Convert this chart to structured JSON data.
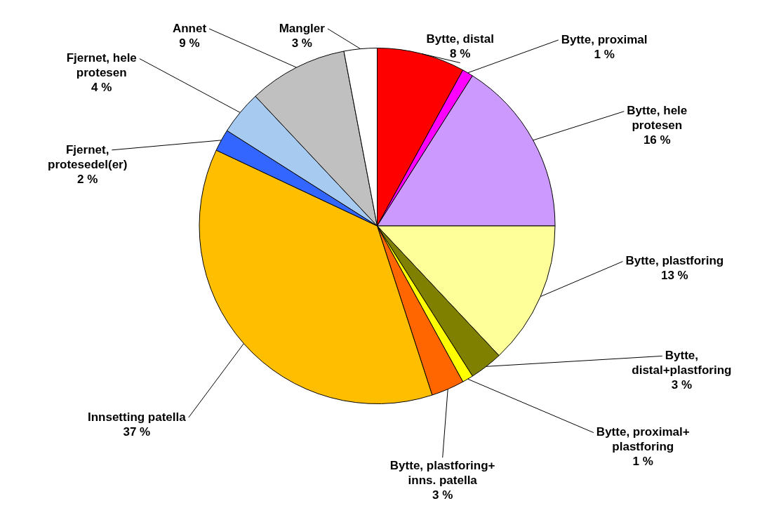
{
  "chart_data": {
    "type": "pie",
    "categories": [
      "Bytte, distal",
      "Bytte, proximal",
      "Bytte, hele protesen",
      "Bytte, plastforing",
      "Bytte, distal+plastforing",
      "Bytte, proximal+ plastforing",
      "Bytte, plastforing+ inns. patella",
      "Innsetting patella",
      "Fjernet, protesedel(er)",
      "Fjernet, hele protesen",
      "Annet",
      "Mangler"
    ],
    "values": [
      8,
      1,
      16,
      13,
      3,
      1,
      3,
      37,
      2,
      4,
      9,
      3
    ],
    "value_labels": [
      "8 %",
      "1 %",
      "16 %",
      "13 %",
      "3 %",
      "1 %",
      "3 %",
      "37 %",
      "2 %",
      "4 %",
      "9 %",
      "3 %"
    ],
    "colors": [
      "#ff0000",
      "#ff00ff",
      "#cc99ff",
      "#ffff99",
      "#808000",
      "#ffff00",
      "#ff6600",
      "#ffbf00",
      "#3366ff",
      "#a6caf0",
      "#c0c0c0",
      "#ffffff"
    ]
  }
}
